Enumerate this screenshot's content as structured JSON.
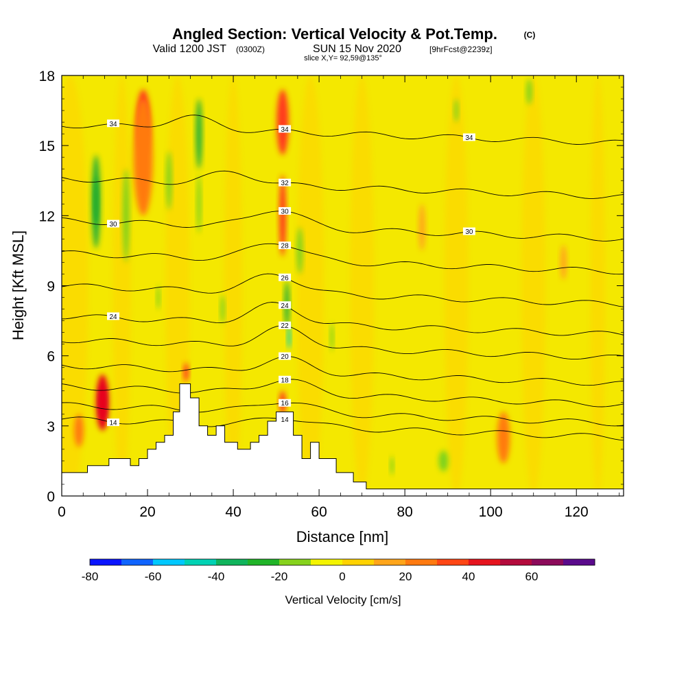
{
  "header": {
    "title": "Angled Section: Vertical Velocity & Pot.Temp.",
    "copyright": "(C)",
    "valid_prefix": "Valid 1200 JST",
    "utc": "(0300Z)",
    "date": "SUN 15 Nov 2020",
    "forecast": "[9hrFcst@2239z]",
    "slice": "slice X,Y= 92,59@135°"
  },
  "chart_data": {
    "type": "heatmap",
    "title": "Angled Section: Vertical Velocity & Pot.Temp.",
    "xlabel": "Distance [nm]",
    "ylabel": "Height [Kft MSL]",
    "xlim": [
      0,
      131
    ],
    "ylim": [
      0,
      18
    ],
    "x_ticks": [
      0,
      20,
      40,
      60,
      80,
      100,
      120
    ],
    "y_ticks": [
      0,
      3,
      6,
      9,
      12,
      15,
      18
    ],
    "background_fill": "#f4e800",
    "velocity_features": [
      {
        "x": 9.5,
        "y": 4.0,
        "w": 1.5,
        "h": 1.4,
        "color": "#9a0044"
      },
      {
        "x": 9.5,
        "y": 4.0,
        "w": 3.0,
        "h": 2.4,
        "color": "#e8001a"
      },
      {
        "x": 19,
        "y": 16.0,
        "w": 3.2,
        "h": 2.8,
        "color": "#ff3b1a"
      },
      {
        "x": 19,
        "y": 14.5,
        "w": 4.5,
        "h": 5.0,
        "color": "#ff7a10"
      },
      {
        "x": 51.5,
        "y": 16.0,
        "w": 2.8,
        "h": 2.8,
        "color": "#ff3b1a"
      },
      {
        "x": 51.5,
        "y": 12.0,
        "w": 1.6,
        "h": 3.5,
        "color": "#ff3b1a"
      },
      {
        "x": 51.5,
        "y": 4.0,
        "w": 1.5,
        "h": 1.0,
        "color": "#ff3b1a"
      },
      {
        "x": 29,
        "y": 5.3,
        "w": 1.2,
        "h": 0.8,
        "color": "#ff3b1a"
      },
      {
        "x": 103,
        "y": 2.5,
        "w": 3.0,
        "h": 2.2,
        "color": "#ff7a10"
      },
      {
        "x": 84,
        "y": 11.5,
        "w": 1.5,
        "h": 2.0,
        "color": "#ffa51a"
      },
      {
        "x": 117,
        "y": 10.0,
        "w": 1.5,
        "h": 1.5,
        "color": "#ffa51a"
      },
      {
        "x": 4,
        "y": 2.8,
        "w": 2.2,
        "h": 1.4,
        "color": "#ff7a10"
      },
      {
        "x": 8,
        "y": 12.6,
        "w": 2.0,
        "h": 4.0,
        "color": "#26b034"
      },
      {
        "x": 8,
        "y": 12.6,
        "w": 1.0,
        "h": 2.0,
        "color": "#1ea82c"
      },
      {
        "x": 15,
        "y": 12.0,
        "w": 1.5,
        "h": 4.0,
        "color": "#7cd21a"
      },
      {
        "x": 25,
        "y": 13.5,
        "w": 1.3,
        "h": 2.5,
        "color": "#7cd21a"
      },
      {
        "x": 32,
        "y": 15.5,
        "w": 1.5,
        "h": 3.0,
        "color": "#26b034"
      },
      {
        "x": 32,
        "y": 12.5,
        "w": 1.0,
        "h": 2.5,
        "color": "#7cd21a"
      },
      {
        "x": 52.5,
        "y": 8.2,
        "w": 1.2,
        "h": 2.0,
        "color": "#26b034"
      },
      {
        "x": 53,
        "y": 6.8,
        "w": 0.8,
        "h": 1.0,
        "color": "#00d2b4"
      },
      {
        "x": 55.5,
        "y": 10.5,
        "w": 1.4,
        "h": 2.0,
        "color": "#7cd21a"
      },
      {
        "x": 37.5,
        "y": 8.0,
        "w": 1.0,
        "h": 1.2,
        "color": "#7cd21a"
      },
      {
        "x": 63,
        "y": 6.8,
        "w": 0.8,
        "h": 1.2,
        "color": "#7cd21a"
      },
      {
        "x": 22.5,
        "y": 8.5,
        "w": 0.8,
        "h": 1.0,
        "color": "#7cd21a"
      },
      {
        "x": 89,
        "y": 1.5,
        "w": 2.2,
        "h": 0.9,
        "color": "#7cd21a"
      },
      {
        "x": 77,
        "y": 1.3,
        "w": 0.8,
        "h": 0.8,
        "color": "#7cd21a"
      },
      {
        "x": 92,
        "y": 16.5,
        "w": 1.0,
        "h": 1.0,
        "color": "#7cd21a"
      },
      {
        "x": 109,
        "y": 17.3,
        "w": 1.3,
        "h": 1.1,
        "color": "#7cd21a"
      }
    ],
    "isentropes": [
      {
        "label": "14",
        "h0": 2.9,
        "bump": 0.4,
        "peak_x": 52
      },
      {
        "label": "16",
        "h0": 3.5,
        "bump": 0.5,
        "peak_x": 52
      },
      {
        "label": "18",
        "h0": 4.3,
        "bump": 0.6,
        "peak_x": 52
      },
      {
        "label": "20",
        "h0": 5.2,
        "bump": 0.6,
        "peak_x": 52
      },
      {
        "label": "22",
        "h0": 6.3,
        "bump": 0.8,
        "peak_x": 52
      },
      {
        "label": "24",
        "h0": 7.3,
        "bump": 0.8,
        "peak_x": 50
      },
      {
        "label": "26",
        "h0": 8.6,
        "bump": 0.8,
        "peak_x": 50
      },
      {
        "label": "28",
        "h0": 10.0,
        "bump": 0.8,
        "peak_x": 50
      },
      {
        "label": "30",
        "h0": 11.4,
        "bump": 0.8,
        "peak_x": 50
      },
      {
        "label": "32",
        "h0": 13.2,
        "bump": 0.5,
        "peak_x": 40
      },
      {
        "label": "34",
        "h0": 15.5,
        "bump": 0.5,
        "peak_x": 30
      }
    ],
    "terrain": [
      [
        0,
        1.0
      ],
      [
        6,
        1.0
      ],
      [
        6,
        1.3
      ],
      [
        11,
        1.3
      ],
      [
        11,
        1.6
      ],
      [
        16,
        1.6
      ],
      [
        16,
        1.3
      ],
      [
        18,
        1.3
      ],
      [
        18,
        1.6
      ],
      [
        20,
        1.6
      ],
      [
        20,
        2.0
      ],
      [
        22,
        2.0
      ],
      [
        22,
        2.3
      ],
      [
        24,
        2.3
      ],
      [
        24,
        2.6
      ],
      [
        26,
        2.6
      ],
      [
        26,
        3.6
      ],
      [
        27.5,
        3.6
      ],
      [
        27.5,
        4.8
      ],
      [
        30,
        4.8
      ],
      [
        30,
        4.2
      ],
      [
        32,
        4.2
      ],
      [
        32,
        3.0
      ],
      [
        34,
        3.0
      ],
      [
        34,
        2.6
      ],
      [
        36,
        2.6
      ],
      [
        36,
        3.0
      ],
      [
        38,
        3.0
      ],
      [
        38,
        2.3
      ],
      [
        41,
        2.3
      ],
      [
        41,
        2.0
      ],
      [
        44,
        2.0
      ],
      [
        44,
        2.3
      ],
      [
        46,
        2.3
      ],
      [
        46,
        2.6
      ],
      [
        48,
        2.6
      ],
      [
        48,
        3.2
      ],
      [
        50,
        3.2
      ],
      [
        50,
        3.6
      ],
      [
        54,
        3.6
      ],
      [
        54,
        2.6
      ],
      [
        56,
        2.6
      ],
      [
        56,
        1.6
      ],
      [
        58,
        1.6
      ],
      [
        58,
        2.3
      ],
      [
        60,
        2.3
      ],
      [
        60,
        1.6
      ],
      [
        64,
        1.6
      ],
      [
        64,
        1.0
      ],
      [
        68,
        1.0
      ],
      [
        68,
        0.6
      ],
      [
        71,
        0.6
      ],
      [
        71,
        0.3
      ],
      [
        131,
        0.3
      ]
    ]
  },
  "colorbar": {
    "title": "Vertical Velocity [cm/s]",
    "labels": [
      "-80",
      "-60",
      "-40",
      "-20",
      "0",
      "20",
      "40",
      "60"
    ],
    "colors": [
      "#0a14ff",
      "#0f64ff",
      "#00c8ff",
      "#00d2b4",
      "#10b45c",
      "#20b428",
      "#86d21c",
      "#f4f400",
      "#ffd200",
      "#ffa51a",
      "#ff7a10",
      "#ff4615",
      "#e6141e",
      "#b40a3c",
      "#8c0a5a",
      "#5a0a8c"
    ]
  }
}
